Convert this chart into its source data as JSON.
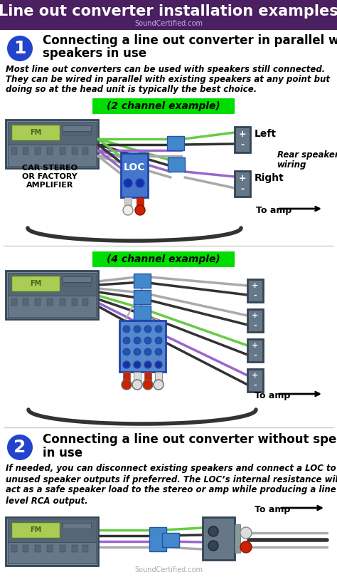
{
  "title": "Line out converter installation examples",
  "subtitle": "SoundCertified.com",
  "title_bg": "#4a2060",
  "title_fg": "#ffffff",
  "bg_color": "#ffffff",
  "section1_heading1": "Connecting a line out converter in parallel with",
  "section1_heading2": "speakers in use",
  "section1_desc1": "Most line out converters can be used with speakers still connected.",
  "section1_desc2": "They can be wired in parallel with existing speakers at any point but",
  "section1_desc3": "doing so at the head unit is typically the best choice.",
  "label_2ch": "(2 channel example)",
  "label_4ch": "(4 channel example)",
  "label_car_stereo": "CAR STEREO\nOR FACTORY\nAMPLIFIER",
  "label_left": "Left",
  "label_right": "Right",
  "label_rear_speaker1": "Rear speaker",
  "label_rear_speaker2": "wiring",
  "label_to_amp": "To amp",
  "label_loc": "LOC",
  "section2_heading1": "Connecting a line out converter without speakers",
  "section2_heading2": "in use",
  "section2_desc1": "If needed, you can disconnect existing speakers and connect a LOC to",
  "section2_desc2": "unused speaker outputs if preferred. The LOC’s internal resistance will",
  "section2_desc3": "act as a safe speaker load to the stereo or amp while producing a line",
  "section2_desc4": "level RCA output.",
  "green_bg": "#00dd00",
  "title_purple": "#4a2060",
  "circle_blue": "#2244cc",
  "wire_green": "#66cc44",
  "wire_purple": "#9966cc",
  "wire_black": "#333333",
  "wire_gray": "#aaaaaa",
  "wire_white": "#dddddd",
  "loc_blue": "#4477cc",
  "stereo_dark": "#556677",
  "stereo_mid": "#778899",
  "stereo_light": "#99aabb",
  "screen_green": "#aacc55",
  "speaker_dark": "#555566",
  "rca_red": "#cc2200",
  "rca_white": "#dddddd",
  "connector_blue": "#4488cc"
}
